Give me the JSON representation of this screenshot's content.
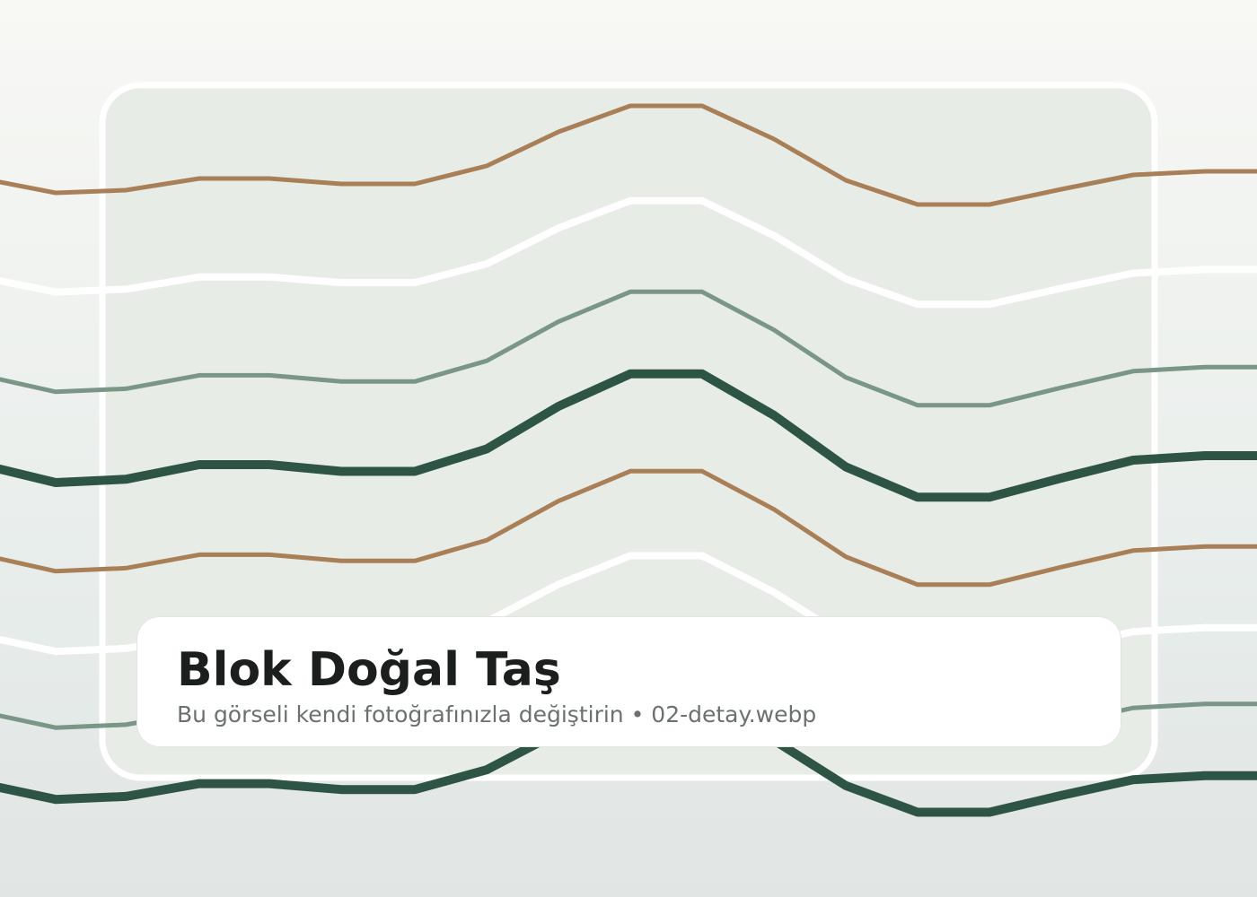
{
  "placeholder": {
    "title": "Blok Doğal Taş",
    "subtitle": "Bu görseli kendi fotoğrafınızla değiştirin • 02-detay.webp"
  },
  "colors": {
    "brown": "#a97f58",
    "white": "#ffffff",
    "sage": "#7a9686",
    "dark_green": "#2e5445",
    "frame_fill": "#e8ece6"
  },
  "pattern": {
    "wave_order": [
      "brown",
      "white",
      "sage",
      "dark_green",
      "brown",
      "white",
      "sage",
      "dark_green"
    ]
  }
}
